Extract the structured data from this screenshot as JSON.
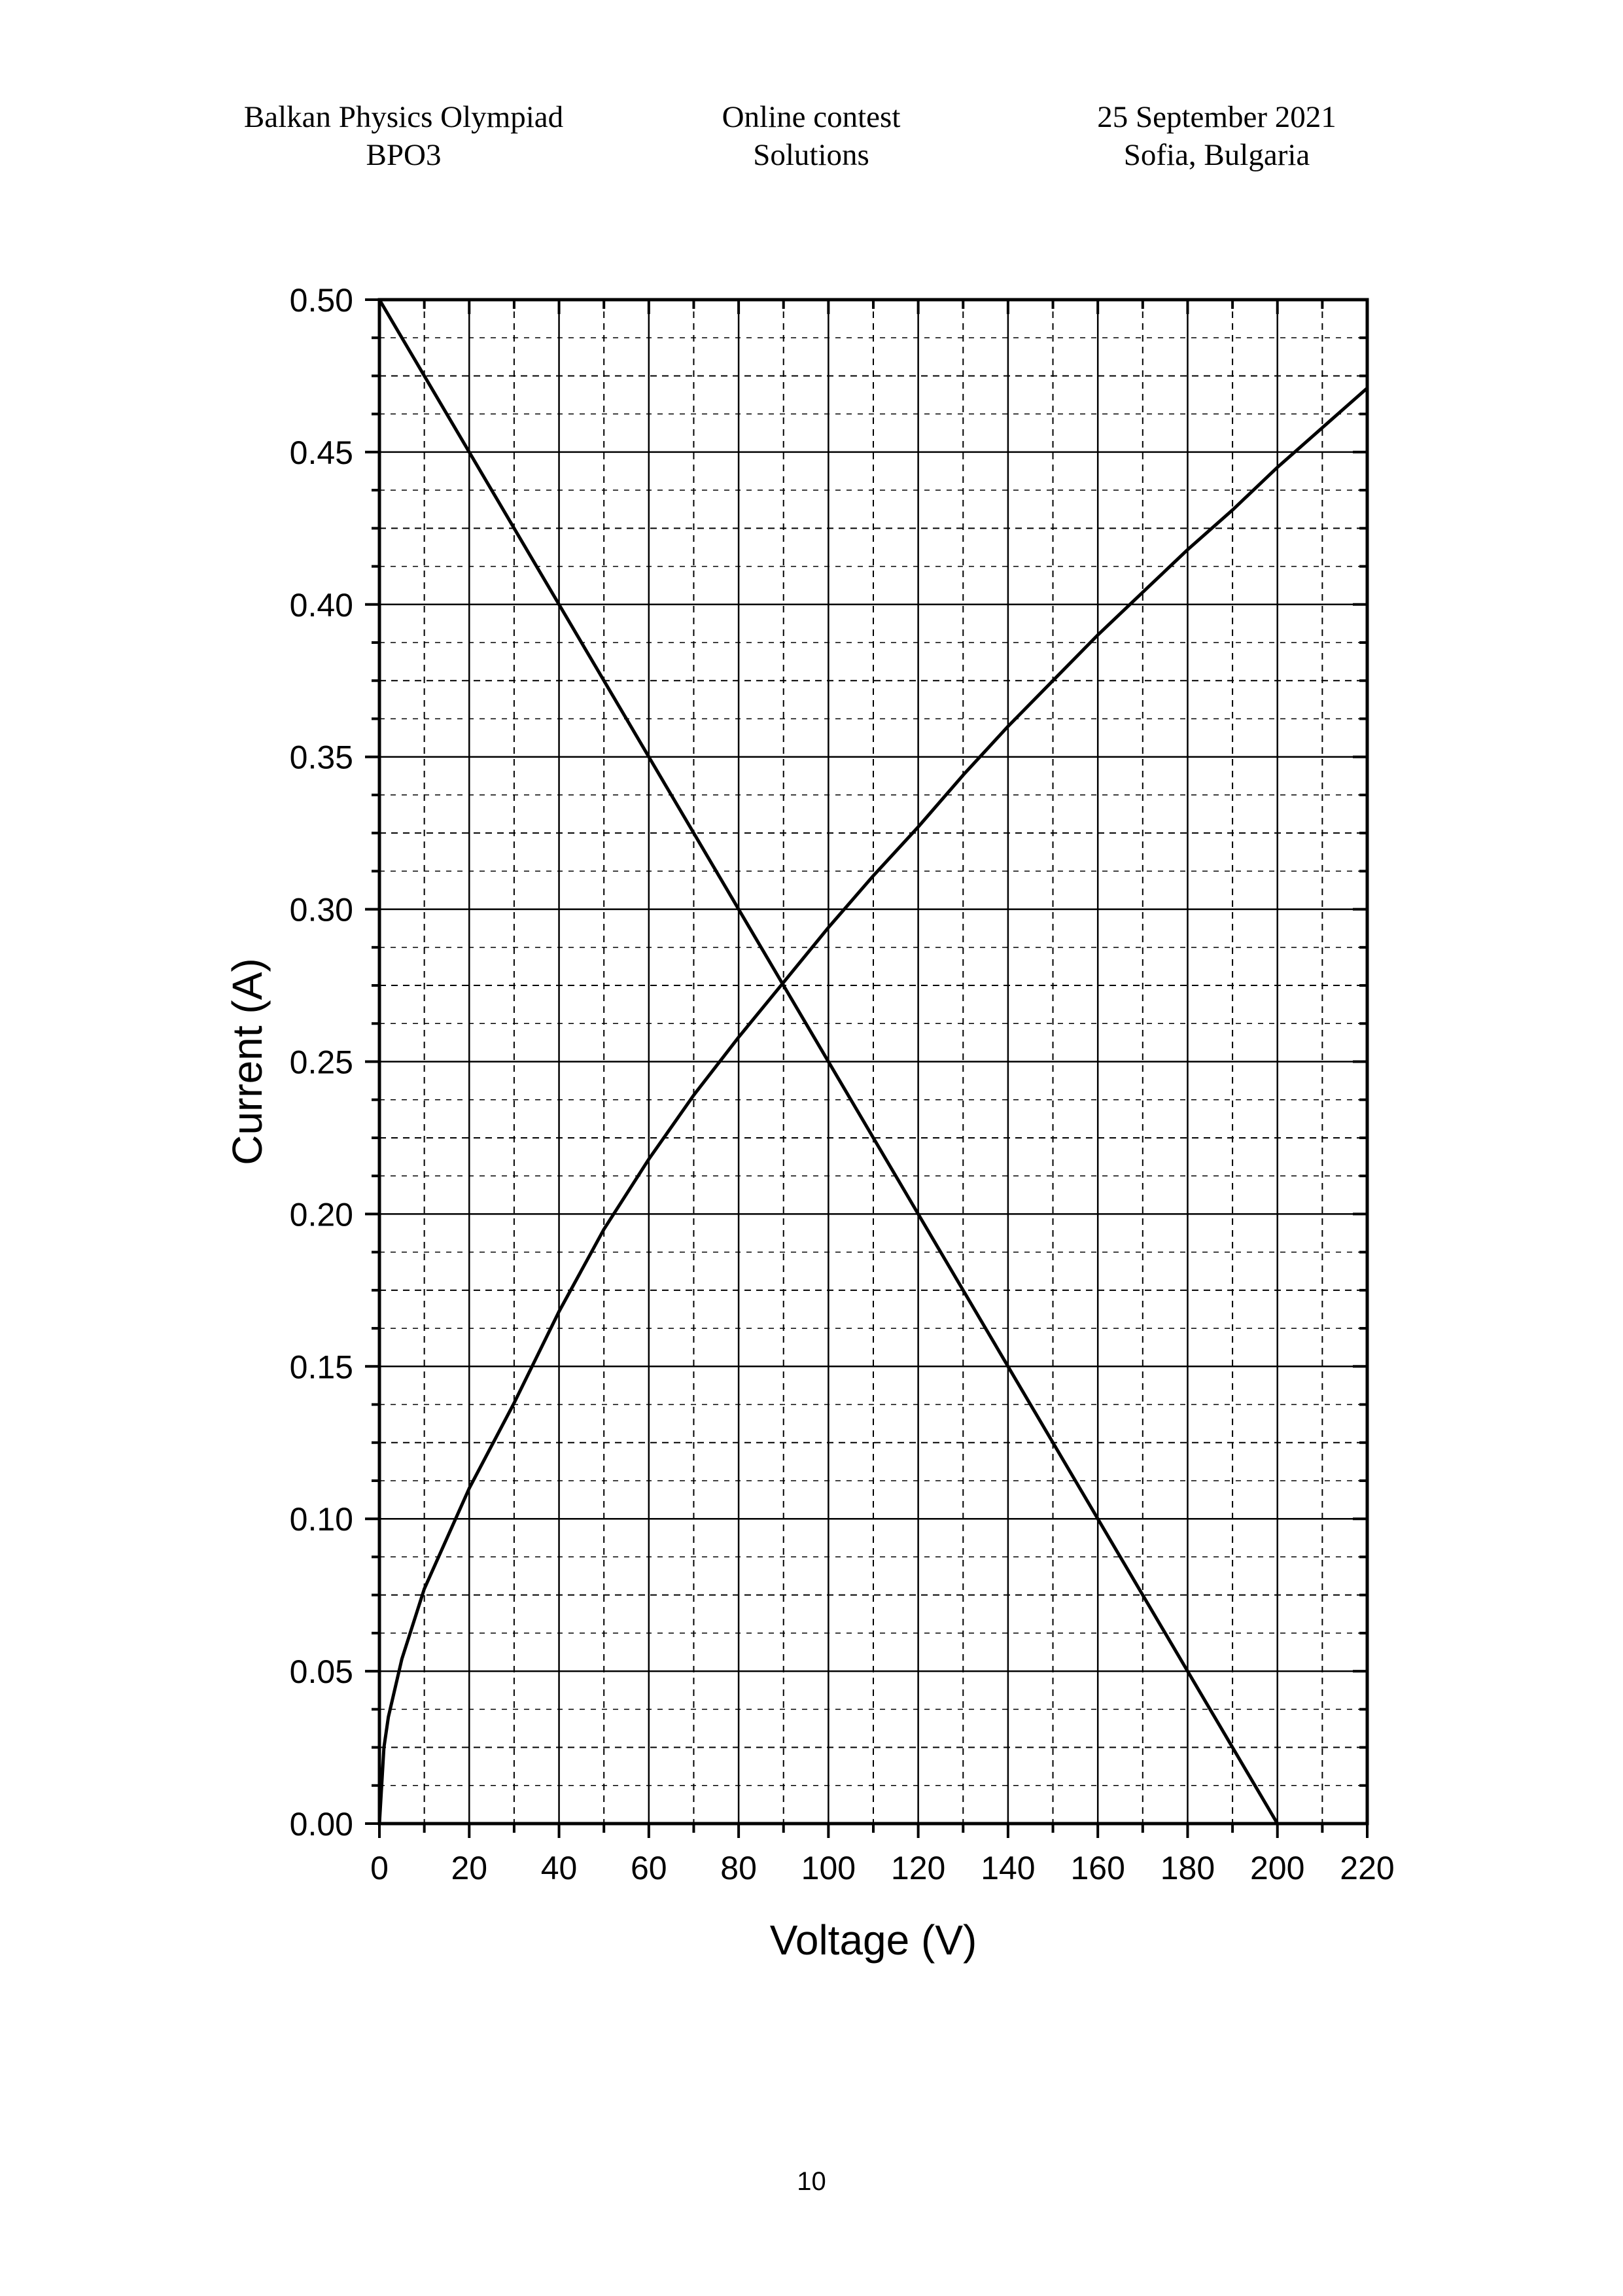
{
  "header": {
    "left": [
      "Balkan Physics Olympiad",
      "BPO3"
    ],
    "center": [
      "Online contest",
      "Solutions"
    ],
    "right": [
      "25 September 2021",
      "Sofia, Bulgaria"
    ]
  },
  "page_number": "10",
  "chart_data": {
    "type": "line",
    "title": "",
    "xlabel": "Voltage (V)",
    "ylabel": "Current (A)",
    "xlim": [
      0,
      220
    ],
    "ylim": [
      0,
      0.5
    ],
    "x_ticks": [
      "0",
      "20",
      "40",
      "60",
      "80",
      "100",
      "120",
      "140",
      "160",
      "180",
      "200",
      "220"
    ],
    "y_ticks": [
      "0.00",
      "0.05",
      "0.10",
      "0.15",
      "0.20",
      "0.25",
      "0.30",
      "0.35",
      "0.40",
      "0.45",
      "0.50"
    ],
    "grid": "major solid, minor dashed",
    "line_color": "#000000",
    "series": [
      {
        "points": [
          [
            0,
            0.5
          ],
          [
            200,
            0.0
          ]
        ]
      },
      {
        "points": [
          [
            0,
            0.0
          ],
          [
            1,
            0.025
          ],
          [
            2,
            0.035
          ],
          [
            5,
            0.054
          ],
          [
            10,
            0.077
          ],
          [
            20,
            0.11
          ],
          [
            30,
            0.138
          ],
          [
            40,
            0.168
          ],
          [
            50,
            0.195
          ],
          [
            60,
            0.218
          ],
          [
            70,
            0.239
          ],
          [
            80,
            0.258
          ],
          [
            90,
            0.276
          ],
          [
            100,
            0.294
          ],
          [
            110,
            0.311
          ],
          [
            120,
            0.327
          ],
          [
            130,
            0.344
          ],
          [
            140,
            0.36
          ],
          [
            150,
            0.375
          ],
          [
            160,
            0.39
          ],
          [
            170,
            0.404
          ],
          [
            180,
            0.418
          ],
          [
            190,
            0.431
          ],
          [
            200,
            0.445
          ],
          [
            210,
            0.458
          ],
          [
            220,
            0.471
          ]
        ]
      }
    ]
  }
}
